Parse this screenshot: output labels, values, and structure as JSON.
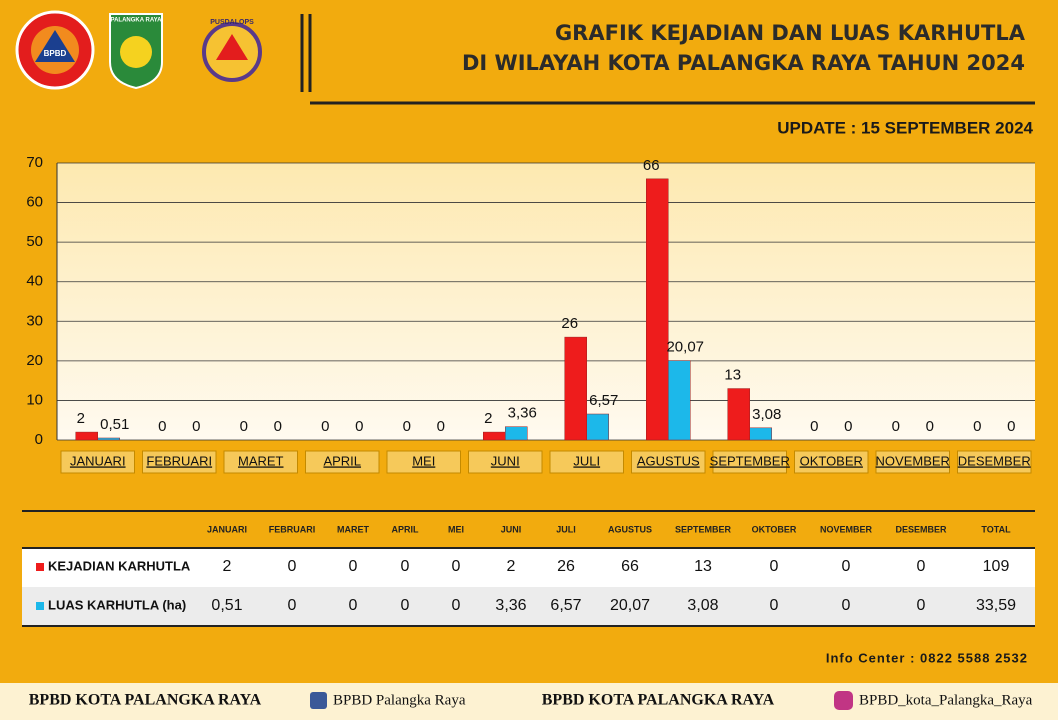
{
  "header": {
    "logo_1": "BPBD",
    "logo_2": "PALANGKA RAYA",
    "logo_3": "PUSDALOPS",
    "title_line1": "GRAFIK KEJADIAN DAN LUAS KARHUTLA",
    "title_line2": "DI WILAYAH KOTA PALANGKA RAYA TAHUN 2024",
    "update": "UPDATE : 15 SEPTEMBER 2024"
  },
  "chart_data": {
    "type": "bar",
    "categories": [
      "JANUARI",
      "FEBRUARI",
      "MARET",
      "APRIL",
      "MEI",
      "JUNI",
      "JULI",
      "AGUSTUS",
      "SEPTEMBER",
      "OKTOBER",
      "NOVEMBER",
      "DESEMBER"
    ],
    "series": [
      {
        "name": "KEJADIAN KARHUTLA",
        "color": "#ee1c1c",
        "values": [
          2,
          0,
          0,
          0,
          0,
          2,
          26,
          66,
          13,
          0,
          0,
          0
        ]
      },
      {
        "name": "LUAS KARHUTLA (ha)",
        "color": "#1cb8ea",
        "values": [
          0.51,
          0,
          0,
          0,
          0,
          3.36,
          6.57,
          20.07,
          3.08,
          0,
          0,
          0
        ],
        "value_labels": [
          "0,51",
          "0",
          "0",
          "0",
          "0",
          "3,36",
          "6,57",
          "20,07",
          "3,08",
          "0",
          "0",
          "0"
        ]
      }
    ],
    "ylim": [
      0,
      70
    ],
    "yticks": [
      0,
      10,
      20,
      30,
      40,
      50,
      60,
      70
    ],
    "grid": true
  },
  "table": {
    "total_label": "TOTAL",
    "rows": [
      [
        "2",
        "0",
        "0",
        "0",
        "0",
        "2",
        "26",
        "66",
        "13",
        "0",
        "0",
        "0",
        "109"
      ],
      [
        "0,51",
        "0",
        "0",
        "0",
        "0",
        "3,36",
        "6,57",
        "20,07",
        "3,08",
        "0",
        "0",
        "0",
        "33,59"
      ]
    ]
  },
  "footer": {
    "info": "Info Center : 0822 5588 2532",
    "org_1": "BPBD KOTA PALANGKA RAYA",
    "facebook": "BPBD Palangka Raya",
    "org_2": "BPBD KOTA PALANGKA RAYA",
    "instagram": "BPBD_kota_Palangka_Raya"
  }
}
